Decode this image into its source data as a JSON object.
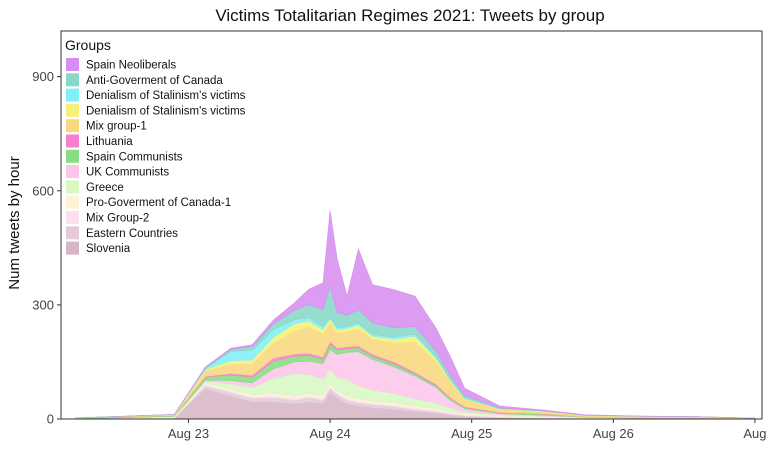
{
  "chart_data": {
    "type": "area",
    "title": "Victims Totalitarian Regimes 2021: Tweets by group",
    "xlabel": "",
    "ylabel": "Num tweets by hour",
    "ylim": [
      0,
      1020
    ],
    "yticks": [
      0,
      300,
      600,
      900
    ],
    "xticks": [
      {
        "day": 23,
        "label": "Aug 23"
      },
      {
        "day": 24,
        "label": "Aug 24"
      },
      {
        "day": 25,
        "label": "Aug 25"
      },
      {
        "day": 26,
        "label": "Aug 26"
      },
      {
        "day": 27,
        "label": "Aug"
      }
    ],
    "xlim_day": [
      22.1,
      27.05
    ],
    "x_day": [
      22.2,
      22.9,
      23.12,
      23.3,
      23.45,
      23.6,
      23.75,
      23.85,
      23.95,
      24.0,
      24.05,
      24.12,
      24.2,
      24.3,
      24.45,
      24.6,
      24.75,
      24.85,
      24.95,
      25.2,
      25.5,
      25.8,
      26.2,
      26.6,
      27.0
    ],
    "legend_title": "Groups",
    "legend_position": "top-left",
    "grid": false,
    "series": [
      {
        "name": "Slovenia",
        "color": "#d7b5c5",
        "values": [
          0,
          2,
          80,
          60,
          45,
          45,
          40,
          45,
          40,
          70,
          55,
          40,
          35,
          30,
          25,
          20,
          15,
          10,
          6,
          3,
          2,
          1,
          1,
          1,
          0
        ]
      },
      {
        "name": "Eastern Countries",
        "color": "#e3cbdc",
        "values": [
          0,
          1,
          8,
          10,
          10,
          12,
          10,
          12,
          10,
          12,
          10,
          10,
          8,
          8,
          8,
          6,
          5,
          4,
          3,
          2,
          1,
          1,
          0,
          0,
          0
        ]
      },
      {
        "name": "Mix Group-2",
        "color": "#fce0f0",
        "values": [
          0,
          0,
          3,
          4,
          4,
          5,
          5,
          5,
          5,
          5,
          5,
          5,
          4,
          4,
          4,
          3,
          3,
          2,
          2,
          1,
          1,
          0,
          0,
          0,
          0
        ]
      },
      {
        "name": "Pro-Goverment of Canada-1",
        "color": "#fff2d4",
        "values": [
          0,
          2,
          3,
          4,
          4,
          5,
          5,
          5,
          5,
          5,
          5,
          5,
          5,
          5,
          5,
          4,
          4,
          3,
          3,
          2,
          2,
          1,
          1,
          1,
          0
        ]
      },
      {
        "name": "Greece",
        "color": "#d8f8c4",
        "values": [
          0,
          2,
          5,
          15,
          20,
          40,
          60,
          50,
          45,
          40,
          35,
          45,
          35,
          30,
          25,
          20,
          15,
          10,
          5,
          3,
          2,
          1,
          0,
          0,
          0
        ]
      },
      {
        "name": "UK Communists",
        "color": "#fcc6ea",
        "values": [
          0,
          0,
          3,
          8,
          12,
          25,
          30,
          35,
          40,
          50,
          60,
          70,
          90,
          80,
          70,
          60,
          40,
          20,
          8,
          3,
          2,
          1,
          0,
          0,
          0
        ]
      },
      {
        "name": "Spain Communists",
        "color": "#88dc82",
        "values": [
          3,
          2,
          8,
          15,
          15,
          20,
          15,
          15,
          12,
          15,
          12,
          10,
          10,
          8,
          8,
          6,
          5,
          4,
          3,
          2,
          3,
          1,
          1,
          1,
          0
        ]
      },
      {
        "name": "Lithuania",
        "color": "#f580cc",
        "values": [
          0,
          0,
          2,
          4,
          5,
          8,
          6,
          6,
          6,
          6,
          5,
          5,
          5,
          5,
          5,
          4,
          4,
          3,
          2,
          1,
          1,
          0,
          0,
          0,
          0
        ]
      },
      {
        "name": "Mix group-1",
        "color": "#f9d77e",
        "values": [
          0,
          2,
          15,
          25,
          30,
          40,
          60,
          70,
          60,
          50,
          40,
          40,
          45,
          40,
          50,
          80,
          60,
          40,
          20,
          8,
          6,
          4,
          4,
          3,
          2
        ]
      },
      {
        "name": "Denialism of  Stalinism's victims",
        "color": "#f5f07c",
        "values": [
          0,
          1,
          3,
          8,
          10,
          15,
          20,
          15,
          12,
          10,
          8,
          8,
          10,
          8,
          10,
          15,
          8,
          5,
          2,
          1,
          1,
          0,
          0,
          0,
          0
        ]
      },
      {
        "name": "Denialism of  Stalinism's victims",
        "color": "#7ff0f8",
        "values": [
          0,
          0,
          2,
          25,
          25,
          20,
          10,
          8,
          8,
          5,
          5,
          5,
          5,
          5,
          5,
          5,
          4,
          3,
          2,
          1,
          0,
          0,
          0,
          0,
          0
        ]
      },
      {
        "name": "Anti-Goverment of Canada",
        "color": "#87d8c8",
        "values": [
          0,
          0,
          3,
          5,
          10,
          15,
          25,
          35,
          45,
          80,
          40,
          30,
          35,
          30,
          25,
          20,
          15,
          10,
          5,
          2,
          1,
          0,
          0,
          0,
          0
        ]
      },
      {
        "name": "Spain Neoliberals",
        "color": "#d68ef0",
        "values": [
          0,
          0,
          2,
          3,
          5,
          10,
          20,
          40,
          70,
          200,
          140,
          50,
          160,
          100,
          100,
          80,
          60,
          50,
          20,
          5,
          2,
          1,
          1,
          0,
          0
        ]
      }
    ]
  }
}
